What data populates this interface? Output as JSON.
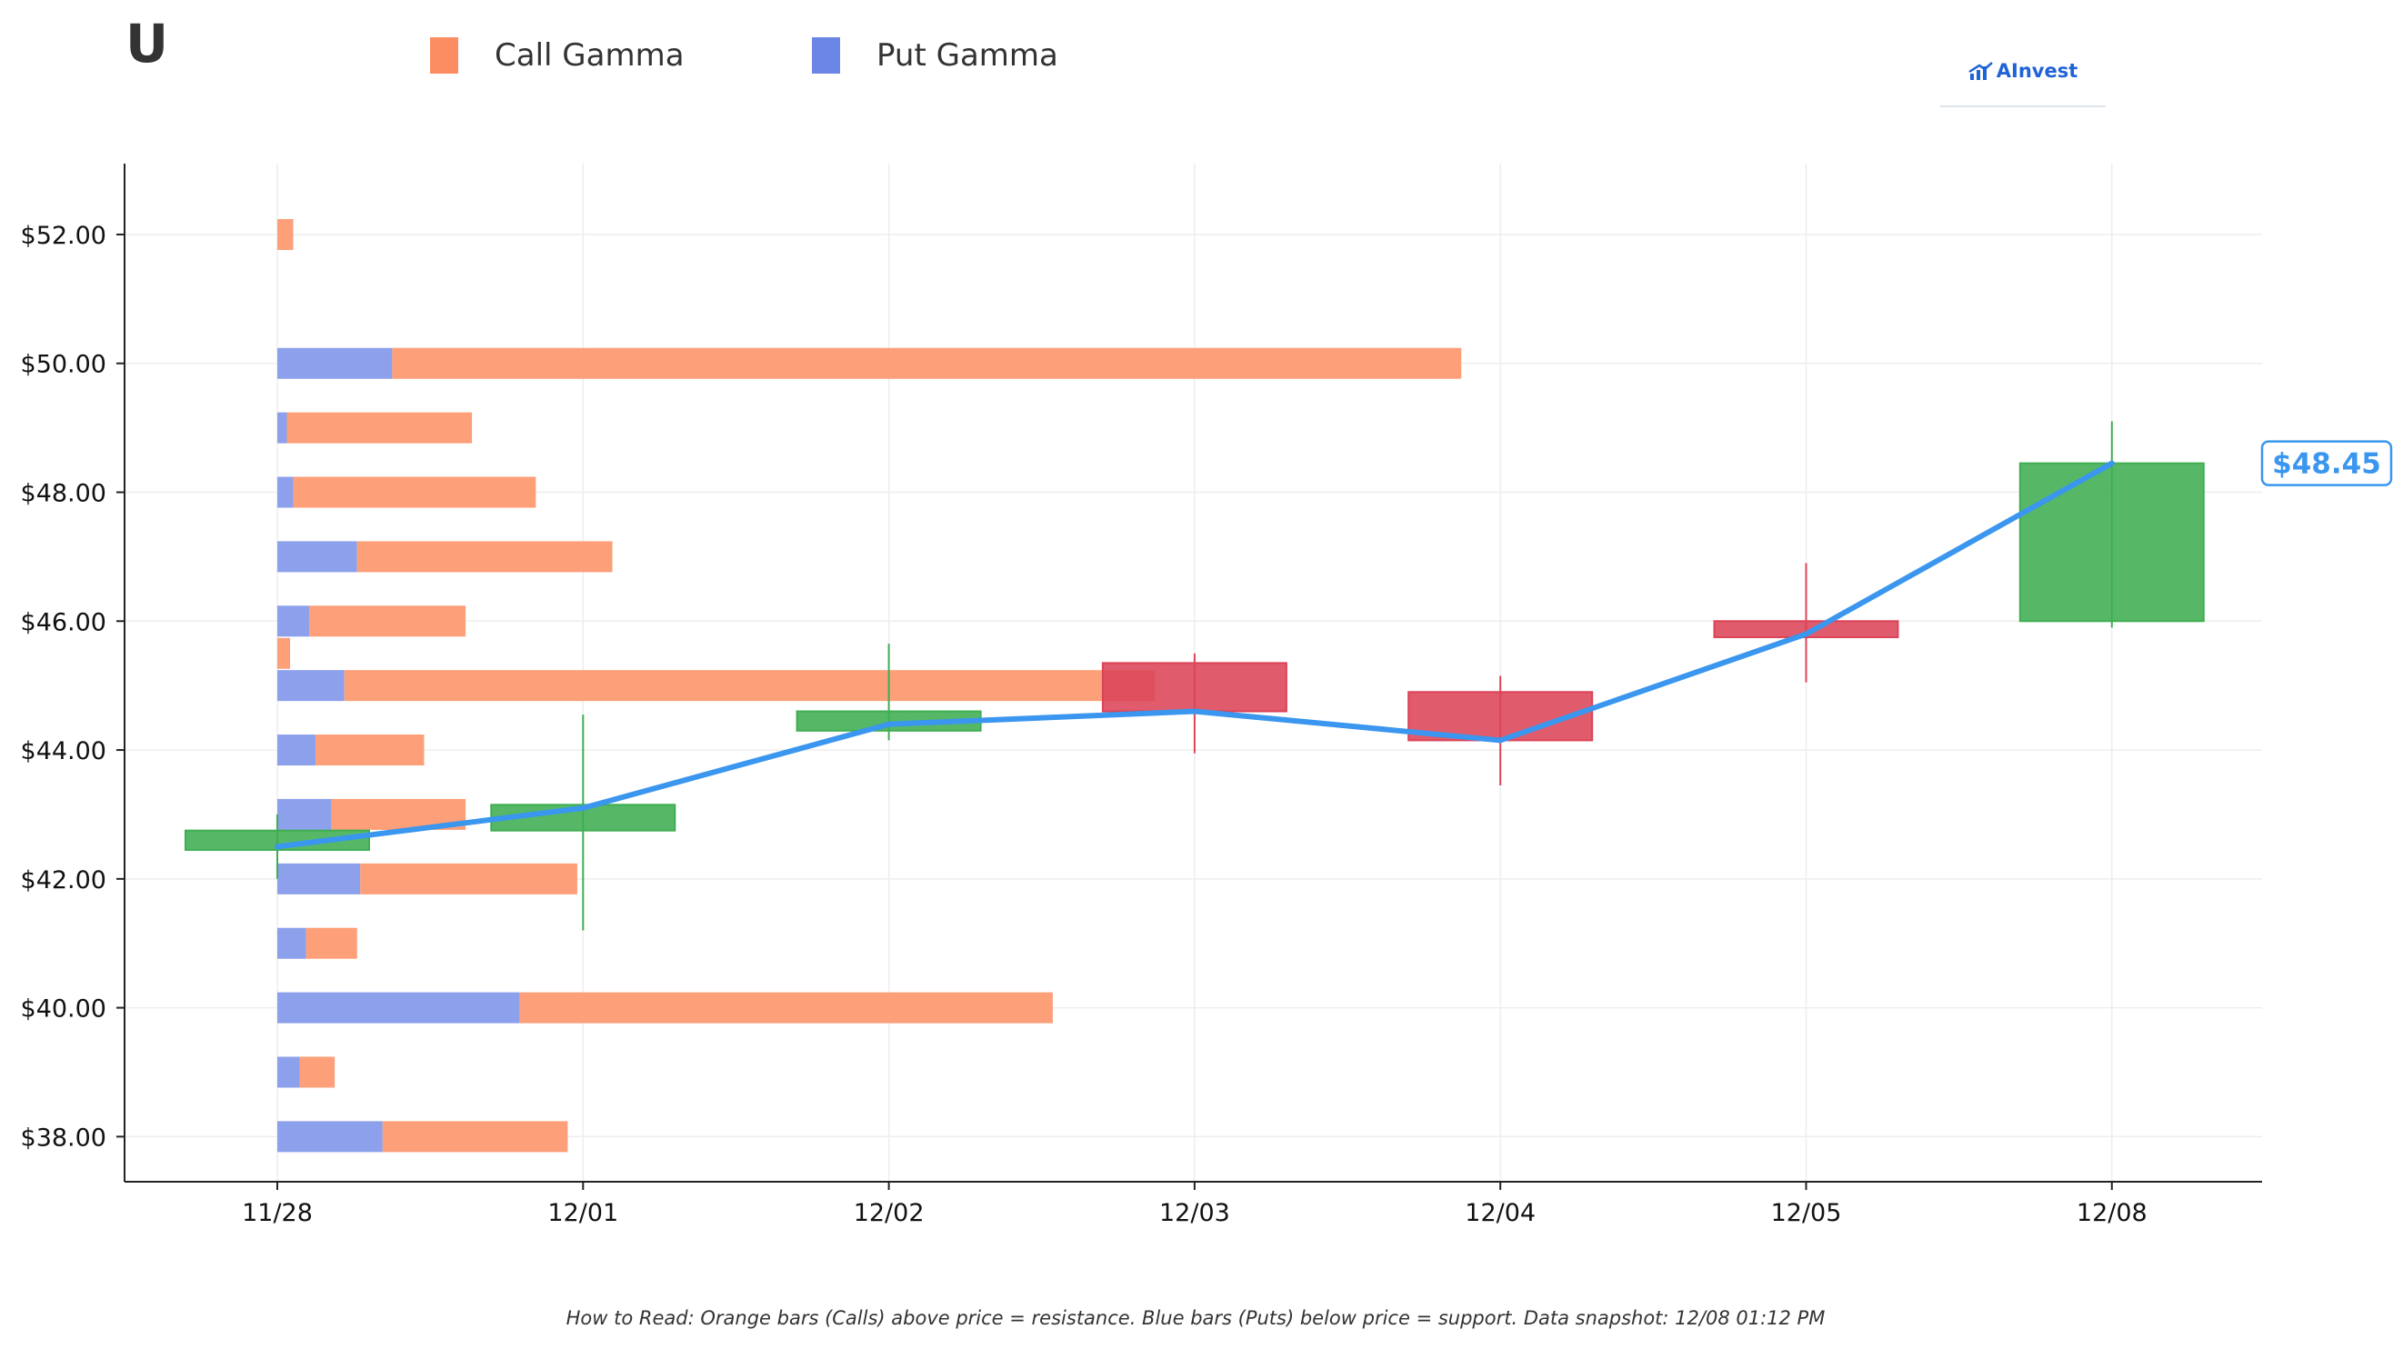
{
  "header": {
    "ticker": "U",
    "brand": "AInvest"
  },
  "legend": {
    "call_label": "Call Gamma",
    "put_label": "Put Gamma"
  },
  "footnote": "How to Read: Orange bars (Calls) above price = resistance. Blue bars (Puts) below price = support. Data snapshot: 12/08 01:12 PM",
  "colors": {
    "call": "#fd9f78",
    "call_legend": "#fc8d62",
    "put": "#8da0eb",
    "put_legend": "#6b86e4",
    "up": "#3fae52",
    "down": "#dc4458",
    "price_line": "#3a96ee",
    "brand": "#1f63d6",
    "axis": "#222222"
  },
  "chart_data": {
    "type": "bar",
    "price_label": "$48.45",
    "categories": [
      "11/28",
      "12/01",
      "12/02",
      "12/03",
      "12/04",
      "12/05",
      "12/08"
    ],
    "ylim": [
      37.3,
      53.1
    ],
    "yticks": [
      38,
      40,
      42,
      44,
      46,
      48,
      50,
      52
    ],
    "ytick_labels": [
      "$38.00",
      "$40.00",
      "$42.00",
      "$44.00",
      "$46.00",
      "$48.00",
      "$50.00",
      "$52.00"
    ],
    "grid": true,
    "legend": "top-left",
    "price_series": [
      42.5,
      43.1,
      44.4,
      44.6,
      44.15,
      45.8,
      48.45
    ],
    "ohlc": [
      {
        "date": "11/28",
        "open": 42.45,
        "high": 43.0,
        "low": 42.0,
        "close": 42.75
      },
      {
        "date": "12/01",
        "open": 42.75,
        "high": 44.55,
        "low": 41.2,
        "close": 43.15
      },
      {
        "date": "12/02",
        "open": 44.3,
        "high": 45.65,
        "low": 44.15,
        "close": 44.6
      },
      {
        "date": "12/03",
        "open": 45.35,
        "high": 45.5,
        "low": 43.95,
        "close": 44.6
      },
      {
        "date": "12/04",
        "open": 44.9,
        "high": 45.15,
        "low": 43.45,
        "close": 44.15
      },
      {
        "date": "12/05",
        "open": 46.0,
        "high": 46.9,
        "low": 45.05,
        "close": 45.75
      },
      {
        "date": "12/08",
        "open": 46.0,
        "high": 49.1,
        "low": 45.9,
        "close": 48.45
      }
    ],
    "gamma_by_strike": [
      {
        "strike": 52.0,
        "put": 0.0,
        "call": 0.25
      },
      {
        "strike": 50.0,
        "put": 1.8,
        "call": 16.75
      },
      {
        "strike": 49.0,
        "put": 0.15,
        "call": 2.9
      },
      {
        "strike": 48.0,
        "put": 0.25,
        "call": 3.8
      },
      {
        "strike": 47.0,
        "put": 1.25,
        "call": 4.0
      },
      {
        "strike": 46.0,
        "put": 0.5,
        "call": 2.45
      },
      {
        "strike": 45.5,
        "put": 0.0,
        "call": 0.2
      },
      {
        "strike": 45.0,
        "put": 1.05,
        "call": 12.7
      },
      {
        "strike": 44.0,
        "put": 0.6,
        "call": 1.7
      },
      {
        "strike": 43.0,
        "put": 0.85,
        "call": 2.1
      },
      {
        "strike": 42.0,
        "put": 1.3,
        "call": 3.4
      },
      {
        "strike": 41.0,
        "put": 0.45,
        "call": 0.8
      },
      {
        "strike": 40.0,
        "put": 3.8,
        "call": 8.35
      },
      {
        "strike": 39.0,
        "put": 0.35,
        "call": 0.55
      },
      {
        "strike": 38.0,
        "put": 1.65,
        "call": 2.9
      }
    ]
  }
}
